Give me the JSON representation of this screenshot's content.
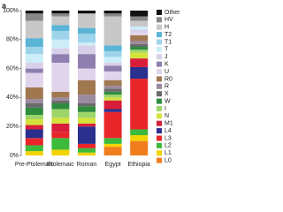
{
  "chart_data": {
    "type": "stacked_bar",
    "panel_label": "a",
    "categories": [
      "Pre-Ptolemaic",
      "Ptolemaic",
      "Roman",
      "Egypt",
      "Ethiopia"
    ],
    "ylim": [
      0,
      100
    ],
    "yticks": [
      {
        "value": 0,
        "label": "0%"
      },
      {
        "value": 20,
        "label": "20%"
      },
      {
        "value": 40,
        "label": "40%"
      },
      {
        "value": 60,
        "label": "60%"
      },
      {
        "value": 80,
        "label": "80%"
      },
      {
        "value": 100,
        "label": "100%"
      }
    ],
    "series": [
      {
        "name": "L0",
        "color": "#f07e1e",
        "values": [
          0,
          0,
          0,
          6,
          10
        ]
      },
      {
        "name": "L1",
        "color": "#f2d400",
        "values": [
          3,
          4,
          2,
          2,
          4
        ]
      },
      {
        "name": "L2",
        "color": "#3cba3c",
        "values": [
          4,
          8,
          3,
          4,
          4
        ]
      },
      {
        "name": "L3",
        "color": "#e8262a",
        "values": [
          5,
          4,
          3,
          18,
          35
        ]
      },
      {
        "name": "L4",
        "color": "#2b2f8e",
        "values": [
          6,
          0,
          12,
          2,
          8
        ]
      },
      {
        "name": "M1",
        "color": "#d81e3a",
        "values": [
          3,
          6,
          2,
          6,
          6
        ]
      },
      {
        "name": "N",
        "color": "#d4e23c",
        "values": [
          4,
          4,
          4,
          2,
          4
        ]
      },
      {
        "name": "I",
        "color": "#9ed46a",
        "values": [
          3,
          6,
          4,
          2,
          2
        ]
      },
      {
        "name": "W",
        "color": "#2e8b3e",
        "values": [
          5,
          4,
          4,
          2,
          2
        ]
      },
      {
        "name": "X",
        "color": "#6a6a6a",
        "values": [
          3,
          2,
          2,
          2,
          2
        ]
      },
      {
        "name": "R",
        "color": "#9c8aa0",
        "values": [
          3,
          2,
          6,
          2,
          2
        ]
      },
      {
        "name": "R0",
        "color": "#a07850",
        "values": [
          8,
          4,
          10,
          4,
          4
        ]
      },
      {
        "name": "U",
        "color": "#e0d4ec",
        "values": [
          10,
          20,
          8,
          6,
          2
        ]
      },
      {
        "name": "K",
        "color": "#8e7fb0",
        "values": [
          3,
          6,
          10,
          4,
          0
        ]
      },
      {
        "name": "J",
        "color": "#d8cfe8",
        "values": [
          4,
          4,
          6,
          2,
          2
        ]
      },
      {
        "name": "T",
        "color": "#cdeef8",
        "values": [
          6,
          6,
          2,
          4,
          2
        ]
      },
      {
        "name": "T1",
        "color": "#9ed4ea",
        "values": [
          5,
          6,
          6,
          4,
          0
        ]
      },
      {
        "name": "T2",
        "color": "#5ab4d6",
        "values": [
          6,
          4,
          4,
          4,
          0
        ]
      },
      {
        "name": "H",
        "color": "#c8c8c8",
        "values": [
          12,
          6,
          10,
          20,
          4
        ]
      },
      {
        "name": "HV",
        "color": "#888888",
        "values": [
          5,
          2,
          0,
          2,
          3
        ]
      },
      {
        "name": "Other",
        "color": "#111111",
        "values": [
          2,
          2,
          2,
          2,
          4
        ]
      }
    ]
  }
}
